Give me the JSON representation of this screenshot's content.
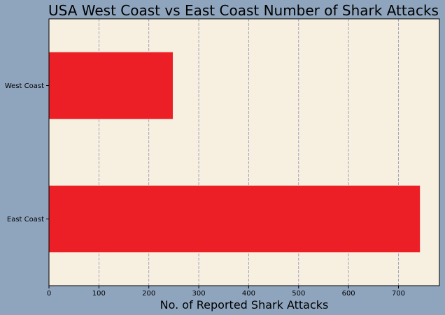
{
  "chart_data": {
    "type": "bar",
    "orientation": "horizontal",
    "title": "USA West Coast vs East Coast Number of Shark Attacks",
    "xlabel": "No. of Reported Shark Attacks",
    "ylabel": "",
    "categories": [
      "East Coast",
      "West Coast"
    ],
    "values": [
      743,
      248
    ],
    "xlim": [
      0,
      782
    ],
    "xticks": [
      0,
      100,
      200,
      300,
      400,
      500,
      600,
      700
    ],
    "grid": "x-dashed",
    "legend": "none",
    "colors": {
      "bar": "#ec1f26",
      "plot_background": "#f7efdf",
      "figure_background": "#8fa5be",
      "grid": "#8a93b5"
    }
  }
}
